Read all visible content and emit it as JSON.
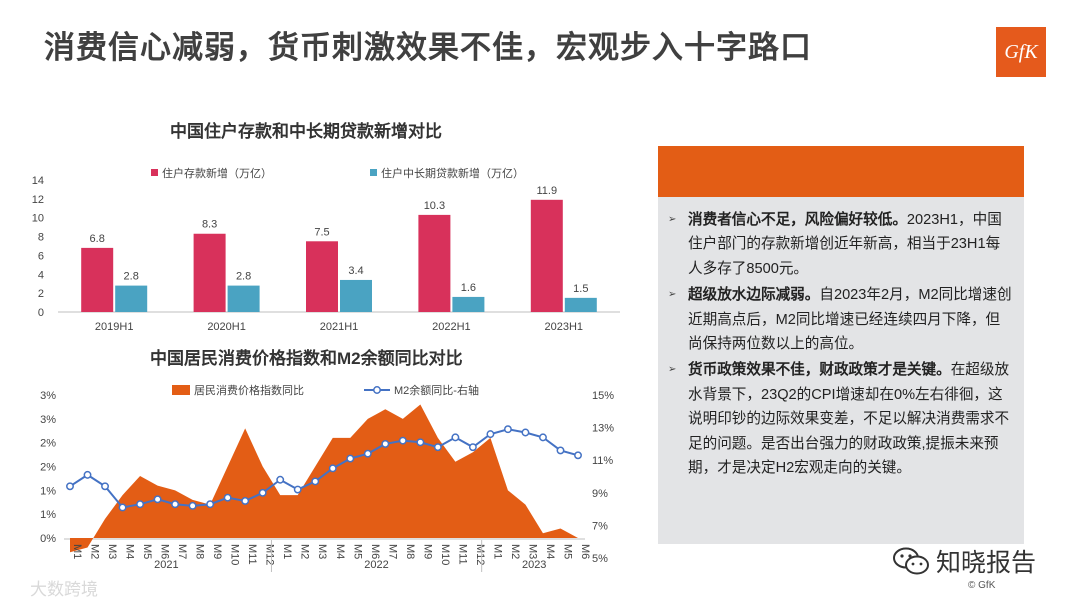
{
  "slide": {
    "title": "消费信心减弱，货币刺激效果不佳，宏观步入十字路口",
    "logo_text": "GfK",
    "copyright": "© GfK",
    "watermark": "知晓报告",
    "source_overlay": "大数跨境"
  },
  "colors": {
    "deposit_bar": "#d8315b",
    "loan_bar": "#4aa3c2",
    "cpi_area": "#e35d15",
    "m2_line": "#4472c4",
    "panel_head": "#e35d15",
    "panel_bg": "#e3e4e6"
  },
  "panel": {
    "bullets": [
      {
        "lead": "消费者信心不足，风险偏好较低。",
        "text": "2023H1，中国住户部门的存款新增创近年新高，相当于23H1每人多存了8500元。"
      },
      {
        "lead": "超级放水边际减弱。",
        "text": "自2023年2月，M2同比增速创近期高点后，M2同比增速已经连续四月下降，但尚保持两位数以上的高位。"
      },
      {
        "lead": "货币政策效果不佳，财政政策才是关键。",
        "text": "在超级放水背景下，23Q2的CPI增速却在0%左右徘徊，这说明印钞的边际效果变差，不足以解决消费需求不足的问题。是否出台强力的财政政策,提振未来预期，才是决定H2宏观走向的关键。"
      }
    ],
    "bullet_mark": "➢"
  },
  "chart_data": [
    {
      "type": "bar",
      "title": "中国住户存款和中长期贷款新增对比",
      "categories": [
        "2019H1",
        "2020H1",
        "2021H1",
        "2022H1",
        "2023H1"
      ],
      "series": [
        {
          "name": "住户存款新增（万亿）",
          "values": [
            6.8,
            8.3,
            7.5,
            10.3,
            11.9
          ]
        },
        {
          "name": "住户中长期贷款新增（万亿）",
          "values": [
            2.8,
            2.8,
            3.4,
            1.6,
            1.5
          ]
        }
      ],
      "value_labels": [
        [
          "6.8",
          "8.3",
          "7.5",
          "10.3",
          "11.9"
        ],
        [
          "2.8",
          "2.8",
          "3.4",
          "1.6",
          "1.5"
        ]
      ],
      "ylim": [
        0,
        14
      ],
      "yticks": [
        "0",
        "2",
        "4",
        "6",
        "8",
        "10",
        "12",
        "14"
      ],
      "legend": "top"
    },
    {
      "type": "area",
      "title": "中国居民消费价格指数和M2余额同比对比",
      "x": [
        "M1",
        "M2",
        "M3",
        "M4",
        "M5",
        "M6",
        "M7",
        "M8",
        "M9",
        "M10",
        "M11",
        "M12",
        "M1",
        "M2",
        "M3",
        "M4",
        "M5",
        "M6",
        "M7",
        "M8",
        "M9",
        "M10",
        "M11",
        "M12",
        "M1",
        "M2",
        "M3",
        "M4",
        "M5",
        "M6"
      ],
      "years": [
        {
          "label": "2021",
          "start": 0,
          "end": 11
        },
        {
          "label": "2022",
          "start": 12,
          "end": 23
        },
        {
          "label": "2023",
          "start": 24,
          "end": 29
        }
      ],
      "series": [
        {
          "name": "居民消费价格指数同比",
          "axis": "left",
          "kind": "area",
          "values": [
            -0.3,
            -0.2,
            0.4,
            0.9,
            1.3,
            1.1,
            1.0,
            0.8,
            0.7,
            1.5,
            2.3,
            1.5,
            0.9,
            0.9,
            1.5,
            2.1,
            2.1,
            2.5,
            2.7,
            2.5,
            2.8,
            2.1,
            1.6,
            1.8,
            2.1,
            1.0,
            0.7,
            0.1,
            0.2,
            0.0
          ]
        },
        {
          "name": "M2余额同比-右轴",
          "axis": "right",
          "kind": "line",
          "values": [
            9.4,
            10.1,
            9.4,
            8.1,
            8.3,
            8.6,
            8.3,
            8.2,
            8.3,
            8.7,
            8.5,
            9.0,
            9.8,
            9.2,
            9.7,
            10.5,
            11.1,
            11.4,
            12.0,
            12.2,
            12.1,
            11.8,
            12.4,
            11.8,
            12.6,
            12.9,
            12.7,
            12.4,
            11.6,
            11.3
          ]
        }
      ],
      "ylim_left": [
        0,
        3
      ],
      "yticks_left": [
        "0%",
        "1%",
        "1%",
        "2%",
        "2%",
        "3%",
        "3%"
      ],
      "ylim_right": [
        5,
        15
      ],
      "yticks_right": [
        "5%",
        "7%",
        "9%",
        "11%",
        "13%",
        "15%"
      ],
      "legend": "top"
    }
  ]
}
